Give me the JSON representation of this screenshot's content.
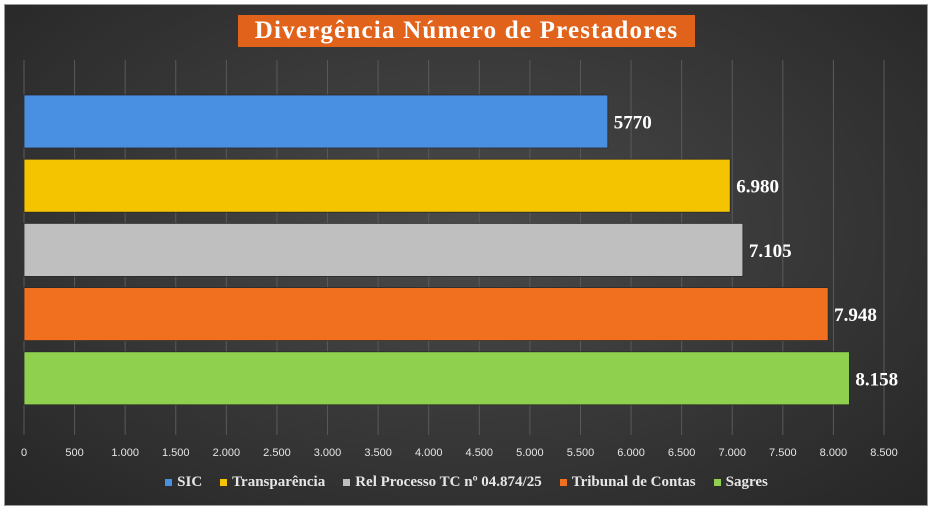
{
  "chart_data": {
    "type": "bar",
    "orientation": "horizontal",
    "title": "Divergência Número de Prestadores",
    "categories": [
      "SIC",
      "Transparência",
      "Rel Processo TC nº 04.874/25",
      "Tribunal de Contas",
      "Sagres"
    ],
    "values": [
      5770,
      6980,
      7105,
      7948,
      8158
    ],
    "data_labels": [
      "5770",
      "6.980",
      "7.105",
      "7.948",
      "8.158"
    ],
    "colors": [
      "#4a90e2",
      "#f5c400",
      "#bfbfbf",
      "#f07020",
      "#8fd14f"
    ],
    "xlim": [
      0,
      8500
    ],
    "xticks": [
      0,
      500,
      1000,
      1500,
      2000,
      2500,
      3000,
      3500,
      4000,
      4500,
      5000,
      5500,
      6000,
      6500,
      7000,
      7500,
      8000,
      8500
    ],
    "xtick_labels": [
      "0",
      "500",
      "1.000",
      "1.500",
      "2.000",
      "2.500",
      "3.000",
      "3.500",
      "4.000",
      "4.500",
      "5.000",
      "5.500",
      "6.000",
      "6.500",
      "7.000",
      "7.500",
      "8.000",
      "8.500"
    ],
    "grid": true,
    "legend_position": "bottom",
    "background": "#333333",
    "title_background": "#e0621b"
  }
}
